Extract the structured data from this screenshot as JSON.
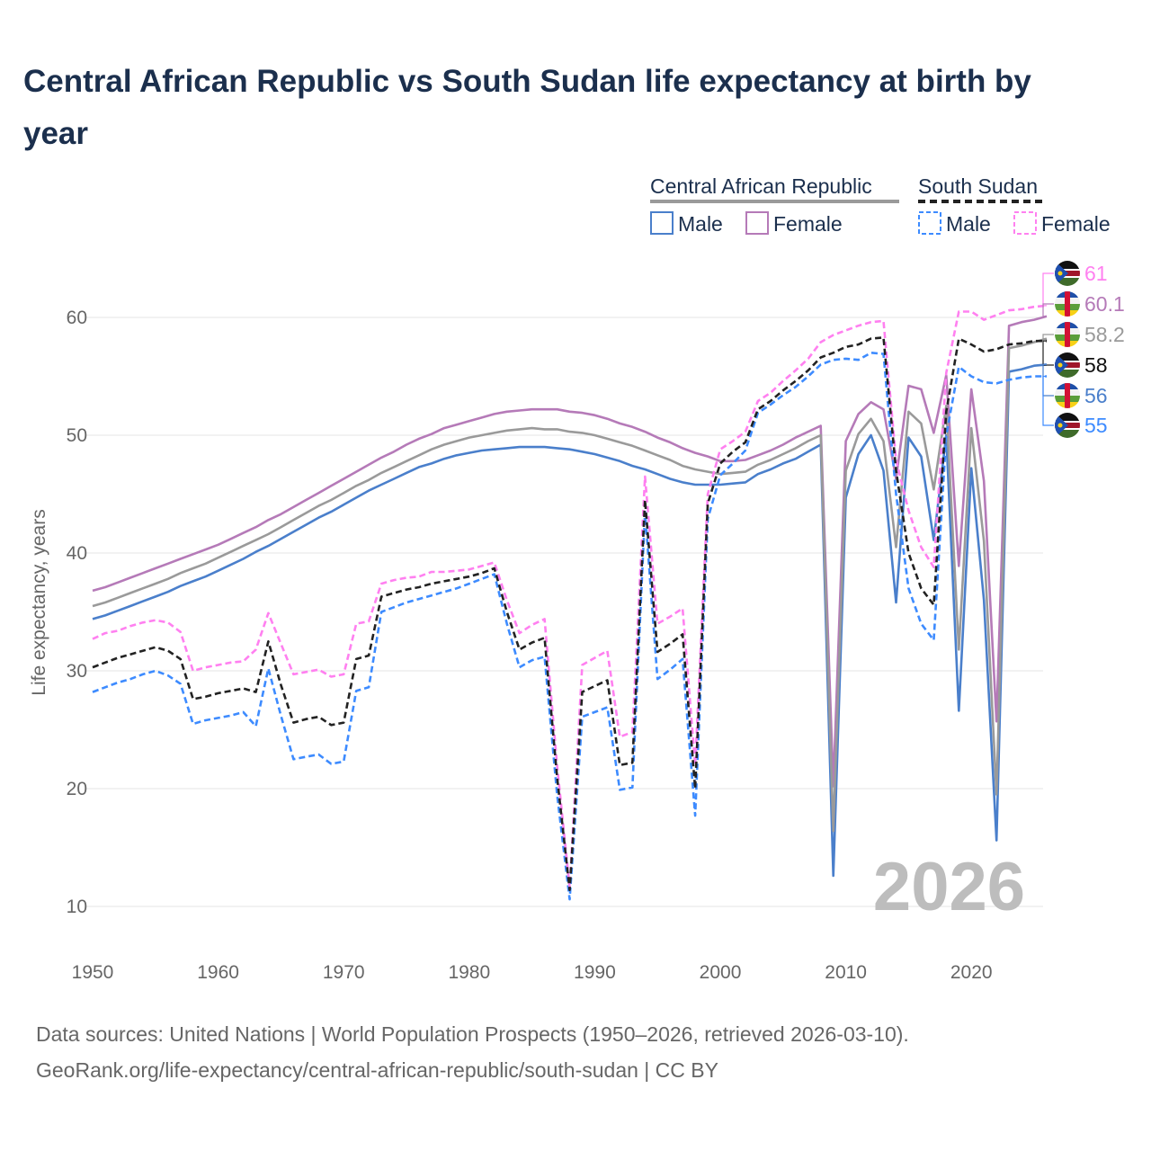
{
  "title": "Central African Republic vs South Sudan life expectancy at birth by year",
  "footer": {
    "line1": "Data sources: United Nations | World Population Prospects (1950–2026, retrieved 2026-03-10).",
    "line2": "GeoRank.org/life-expectancy/central-african-republic/south-sudan | CC BY"
  },
  "watermark_year": "2026",
  "legend": {
    "groups": [
      {
        "country": "Central African Republic",
        "male": "Male",
        "female": "Female"
      },
      {
        "country": "South Sudan",
        "male": "Male",
        "female": "Female"
      }
    ]
  },
  "colors": {
    "car_male": "#4a7fcb",
    "car_female": "#b57ab8",
    "car_total": "#9a9a9a",
    "ss_male": "#3d8bff",
    "ss_female": "#ff80f0",
    "ss_total": "#222222",
    "title": "#1b2f4d"
  },
  "chart_data": {
    "type": "line",
    "title": "Central African Republic vs South Sudan life expectancy at birth by year",
    "xlabel": "",
    "ylabel": "Life expectancy, years",
    "x_start": 1950,
    "x_end": 2026,
    "xlim": [
      1950,
      2026
    ],
    "ylim": [
      10,
      60
    ],
    "xticks": [
      "1950",
      "1960",
      "1970",
      "1980",
      "1990",
      "2000",
      "2010",
      "2020"
    ],
    "yticks": [
      "10",
      "20",
      "30",
      "40",
      "50",
      "60"
    ],
    "grid": true,
    "legend_position": "top-right",
    "series": [
      {
        "key": "ss_female",
        "name": "South Sudan Female",
        "end_label": "61",
        "flag": "south-sudan",
        "dashed": true,
        "values": [
          32.7,
          33.2,
          33.4,
          33.8,
          34.1,
          34.3,
          34.1,
          33.3,
          30.0,
          30.3,
          30.5,
          30.7,
          30.8,
          31.8,
          34.9,
          32.3,
          29.7,
          29.9,
          30.1,
          29.5,
          29.7,
          34.0,
          34.2,
          37.4,
          37.7,
          37.9,
          38.0,
          38.4,
          38.4,
          38.5,
          38.6,
          38.9,
          39.2,
          36.0,
          33.2,
          33.9,
          34.4,
          22.0,
          11.6,
          30.5,
          31.1,
          31.7,
          24.4,
          24.8,
          46.5,
          34.0,
          34.6,
          35.3,
          22.0,
          45.0,
          48.8,
          49.5,
          50.3,
          52.9,
          53.6,
          54.6,
          55.5,
          56.5,
          57.9,
          58.5,
          58.9,
          59.3,
          59.6,
          59.7,
          47.9,
          43.6,
          40.5,
          38.8,
          55.3,
          60.5,
          60.5,
          59.8,
          60.2,
          60.6,
          60.7,
          60.9,
          61.0
        ]
      },
      {
        "key": "car_female",
        "name": "Central African Republic Female",
        "end_label": "60.1",
        "flag": "car",
        "dashed": false,
        "values": [
          36.8,
          37.1,
          37.5,
          37.9,
          38.3,
          38.7,
          39.1,
          39.5,
          39.9,
          40.3,
          40.7,
          41.2,
          41.7,
          42.2,
          42.8,
          43.3,
          43.9,
          44.5,
          45.1,
          45.7,
          46.3,
          46.9,
          47.5,
          48.1,
          48.6,
          49.2,
          49.7,
          50.1,
          50.6,
          50.9,
          51.2,
          51.5,
          51.8,
          52.0,
          52.1,
          52.2,
          52.2,
          52.2,
          52.0,
          51.9,
          51.7,
          51.4,
          51.0,
          50.7,
          50.3,
          49.8,
          49.4,
          48.9,
          48.5,
          48.2,
          47.8,
          47.8,
          47.9,
          48.3,
          48.7,
          49.2,
          49.8,
          50.3,
          50.8,
          20.2,
          49.5,
          51.8,
          52.8,
          52.2,
          46.3,
          54.2,
          53.9,
          50.2,
          55.1,
          38.9,
          53.9,
          46.1,
          25.7,
          59.3,
          59.6,
          59.8,
          60.1
        ]
      },
      {
        "key": "car_total",
        "name": "Central African Republic",
        "end_label": "58.2",
        "flag": "car",
        "dashed": false,
        "values": [
          35.5,
          35.8,
          36.2,
          36.6,
          37.0,
          37.4,
          37.8,
          38.3,
          38.7,
          39.1,
          39.6,
          40.1,
          40.6,
          41.1,
          41.6,
          42.2,
          42.8,
          43.4,
          44.0,
          44.5,
          45.1,
          45.7,
          46.2,
          46.8,
          47.3,
          47.8,
          48.3,
          48.8,
          49.2,
          49.5,
          49.8,
          50.0,
          50.2,
          50.4,
          50.5,
          50.6,
          50.5,
          50.5,
          50.3,
          50.2,
          50.0,
          49.7,
          49.4,
          49.1,
          48.7,
          48.3,
          47.9,
          47.4,
          47.1,
          46.9,
          46.7,
          46.8,
          46.9,
          47.5,
          47.9,
          48.4,
          48.9,
          49.5,
          50.0,
          16.4,
          47.0,
          50.1,
          51.4,
          49.5,
          40.5,
          52.0,
          51.0,
          45.4,
          52.5,
          31.8,
          50.6,
          41.0,
          19.5,
          57.4,
          57.6,
          57.9,
          58.2
        ]
      },
      {
        "key": "ss_total",
        "name": "South Sudan",
        "end_label": "58",
        "flag": "south-sudan",
        "dashed": true,
        "values": [
          30.3,
          30.7,
          31.1,
          31.4,
          31.7,
          32.0,
          31.7,
          31.0,
          27.6,
          27.8,
          28.1,
          28.3,
          28.5,
          28.2,
          32.5,
          28.8,
          25.6,
          25.9,
          26.1,
          25.4,
          25.6,
          31.0,
          31.3,
          36.3,
          36.6,
          36.9,
          37.1,
          37.4,
          37.6,
          37.8,
          38.0,
          38.3,
          38.7,
          35.0,
          31.8,
          32.4,
          32.8,
          21.0,
          11.4,
          28.2,
          28.7,
          29.2,
          22.0,
          22.2,
          44.5,
          31.6,
          32.3,
          33.1,
          20.0,
          44.2,
          47.6,
          48.6,
          49.4,
          52.2,
          52.9,
          53.8,
          54.6,
          55.5,
          56.6,
          57.0,
          57.5,
          57.7,
          58.2,
          58.3,
          47.0,
          40.0,
          37.0,
          35.6,
          52.0,
          58.2,
          57.7,
          57.1,
          57.3,
          57.7,
          57.8,
          58.0,
          58.0
        ]
      },
      {
        "key": "car_male",
        "name": "Central African Republic Male",
        "end_label": "56",
        "flag": "car",
        "dashed": false,
        "values": [
          34.4,
          34.7,
          35.1,
          35.5,
          35.9,
          36.3,
          36.7,
          37.2,
          37.6,
          38.0,
          38.5,
          39.0,
          39.5,
          40.1,
          40.6,
          41.2,
          41.8,
          42.4,
          43.0,
          43.5,
          44.1,
          44.7,
          45.3,
          45.8,
          46.3,
          46.8,
          47.3,
          47.6,
          48.0,
          48.3,
          48.5,
          48.7,
          48.8,
          48.9,
          49.0,
          49.0,
          49.0,
          48.9,
          48.8,
          48.6,
          48.4,
          48.1,
          47.8,
          47.4,
          47.1,
          46.7,
          46.3,
          46.0,
          45.8,
          45.8,
          45.8,
          45.9,
          46.0,
          46.7,
          47.1,
          47.6,
          48.0,
          48.6,
          49.2,
          12.6,
          44.7,
          48.4,
          50.0,
          47.0,
          35.8,
          49.8,
          48.2,
          41.1,
          50.0,
          26.6,
          47.2,
          36.0,
          15.6,
          55.4,
          55.6,
          55.9,
          56.0
        ]
      },
      {
        "key": "ss_male",
        "name": "South Sudan Male",
        "end_label": "55",
        "flag": "south-sudan",
        "dashed": true,
        "values": [
          28.2,
          28.6,
          29.0,
          29.3,
          29.7,
          30.0,
          29.6,
          28.9,
          25.5,
          25.8,
          26.0,
          26.2,
          26.5,
          25.3,
          30.2,
          26.2,
          22.5,
          22.7,
          22.9,
          22.1,
          22.3,
          28.3,
          28.6,
          35.0,
          35.4,
          35.8,
          36.1,
          36.4,
          36.7,
          37.0,
          37.4,
          37.8,
          38.2,
          34.0,
          30.3,
          30.9,
          31.2,
          19.5,
          10.6,
          26.1,
          26.5,
          26.9,
          19.9,
          20.1,
          43.5,
          29.3,
          30.1,
          31.0,
          17.7,
          42.9,
          46.6,
          47.6,
          48.7,
          51.9,
          52.6,
          53.4,
          54.1,
          55.0,
          56.0,
          56.4,
          56.5,
          56.4,
          57.0,
          56.9,
          45.0,
          37.0,
          34.0,
          32.6,
          50.0,
          55.8,
          55.0,
          54.5,
          54.4,
          54.7,
          54.9,
          55.0,
          55.0
        ]
      }
    ]
  }
}
